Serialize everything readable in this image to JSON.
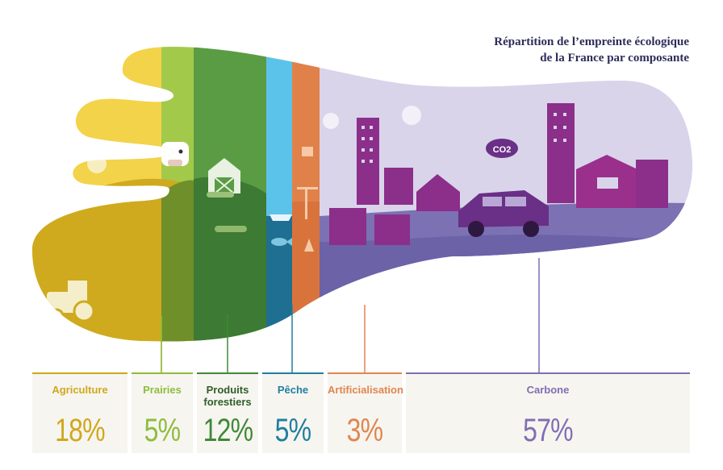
{
  "title": {
    "line1": "Répartition de l’empreinte écologique",
    "line2": "de la France par composante"
  },
  "icons": [
    "cow-icon",
    "barn-icon",
    "tractor-icon",
    "log-icon",
    "fish-icon",
    "boat-icon",
    "crane-icon",
    "cone-icon",
    "car-icon",
    "co2-cloud-icon",
    "building-icon",
    "sun-icon"
  ],
  "co2_label": "CO2",
  "chart_data": {
    "type": "bar",
    "categories": [
      "Agriculture",
      "Prairies",
      "Produits forestiers",
      "Pêche",
      "Artificialisation",
      "Carbone"
    ],
    "values": [
      18,
      5,
      12,
      5,
      3,
      57
    ],
    "unit": "%",
    "labels": [
      "18%",
      "5%",
      "12%",
      "5%",
      "3%",
      "57%"
    ],
    "colors": [
      "#cfa81c",
      "#8dbd3c",
      "#3f8a37",
      "#1f7fa0",
      "#e08650",
      "#7f6fb3"
    ]
  }
}
